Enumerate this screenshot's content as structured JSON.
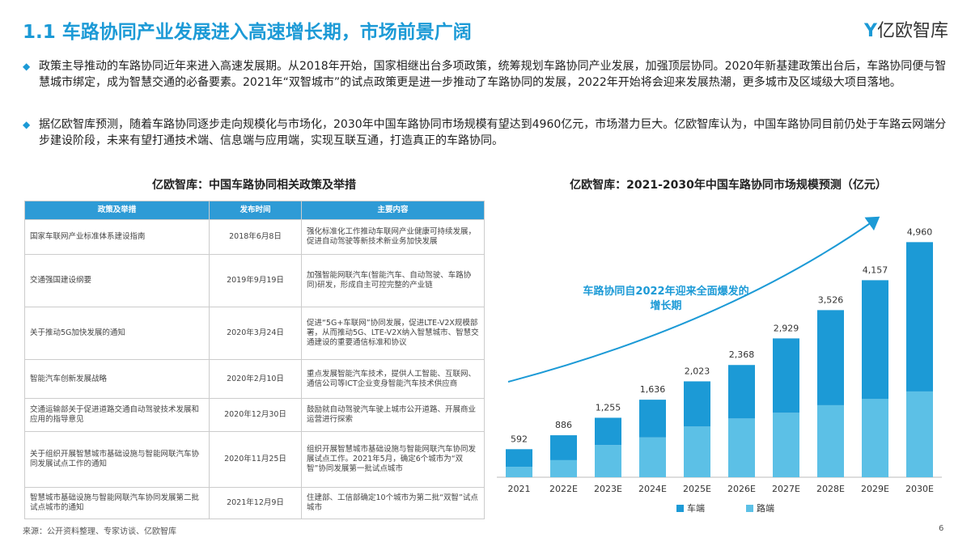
{
  "header": {
    "title": "1.1 车路协同产业发展进入高速增长期，市场前景广阔",
    "logo": "亿欧智库"
  },
  "bullets": [
    "政策主导推动的车路协同近年来进入高速发展期。从2018年开始，国家相继出台多项政策，统筹规划车路协同产业发展，加强顶层协同。2020年新基建政策出台后，车路协同便与智慧城市绑定，成为智慧交通的必备要素。2021年“双智城市”的试点政策更是进一步推动了车路协同的发展，2022年开始将会迎来发展热潮，更多城市及区域级大项目落地。",
    "据亿欧智库预测，随着车路协同逐步走向规模化与市场化，2030年中国车路协同市场规模有望达到4960亿元，市场潜力巨大。亿欧智库认为，中国车路协同目前仍处于车路云网端分步建设阶段，未来有望打通技术端、信息端与应用端，实现互联互通，打造真正的车路协同。"
  ],
  "table": {
    "title": "亿欧智库：中国车路协同相关政策及举措",
    "columns": [
      "政策及举措",
      "发布时间",
      "主要内容"
    ],
    "rows": [
      [
        "国家车联网产业标准体系建设指南",
        "2018年6月8日",
        "强化标准化工作推动车联网产业健康可持续发展，促进自动驾驶等新技术新业务加快发展"
      ],
      [
        "交通强国建设纲要",
        "2019年9月19日",
        "加强智能网联汽车(智能汽车、自动驾驶、车路协同)研发，形成自主可控完整的产业链"
      ],
      [
        "关于推动5G加快发展的通知",
        "2020年3月24日",
        "促进“5G+车联网”协同发展，促进LTE-V2X规模部署，从而推动5G、LTE-V2X纳入智慧城市、智慧交通建设的重要通信标准和协议"
      ],
      [
        "智能汽车创新发展战略",
        "2020年2月10日",
        "重点发展智能汽车技术，提供人工智能、互联网、通信公司等ICT企业变身智能汽车技术供应商"
      ],
      [
        "交通运输部关于促进道路交通自动驾驶技术发展和应用的指导意见",
        "2020年12月30日",
        "鼓励就自动驾驶汽车驶上城市公开道路、开展商业运营进行探索"
      ],
      [
        "关于组织开展智慧城市基础设施与智能网联汽车协同发展试点工作的通知",
        "2020年11月25日",
        "组织开展智慧城市基础设施与智能网联汽车协同发展试点工作。2021年5月，确定6个城市为“双智”协同发展第一批试点城市"
      ],
      [
        "智慧城市基础设施与智能网联汽车协同发展第二批试点城市的通知",
        "2021年12月9日",
        "住建部、工信部确定10个城市为第二批“双智”试点城市"
      ]
    ]
  },
  "chart_data": {
    "type": "bar",
    "stacked": true,
    "title": "亿欧智库：2021-2030年中国车路协同市场规模预测（亿元）",
    "categories": [
      "2021",
      "2022E",
      "2023E",
      "2024E",
      "2025E",
      "2026E",
      "2027E",
      "2028E",
      "2029E",
      "2030E"
    ],
    "series": [
      {
        "name": "车端",
        "color": "#1c9ad6",
        "values": [
          372,
          526,
          575,
          796,
          953,
          1128,
          1569,
          2006,
          2507,
          3150
        ]
      },
      {
        "name": "路端",
        "color": "#5cc0e6",
        "values": [
          220,
          360,
          680,
          840,
          1070,
          1240,
          1360,
          1520,
          1650,
          1810
        ]
      }
    ],
    "totals": [
      592,
      886,
      1255,
      1636,
      2023,
      2368,
      2929,
      3526,
      4157,
      4960
    ],
    "total_labels": [
      "592",
      "886",
      "1,255",
      "1,636",
      "2,023",
      "2,368",
      "2,929",
      "3,526",
      "4,157",
      "4,960"
    ],
    "annotation": "车路协同自2022年迎来全面爆发的增长期",
    "ylim": [
      0,
      5000
    ]
  },
  "footer": {
    "source": "来源：公开资料整理、专家访谈、亿欧智库",
    "page": 6
  }
}
